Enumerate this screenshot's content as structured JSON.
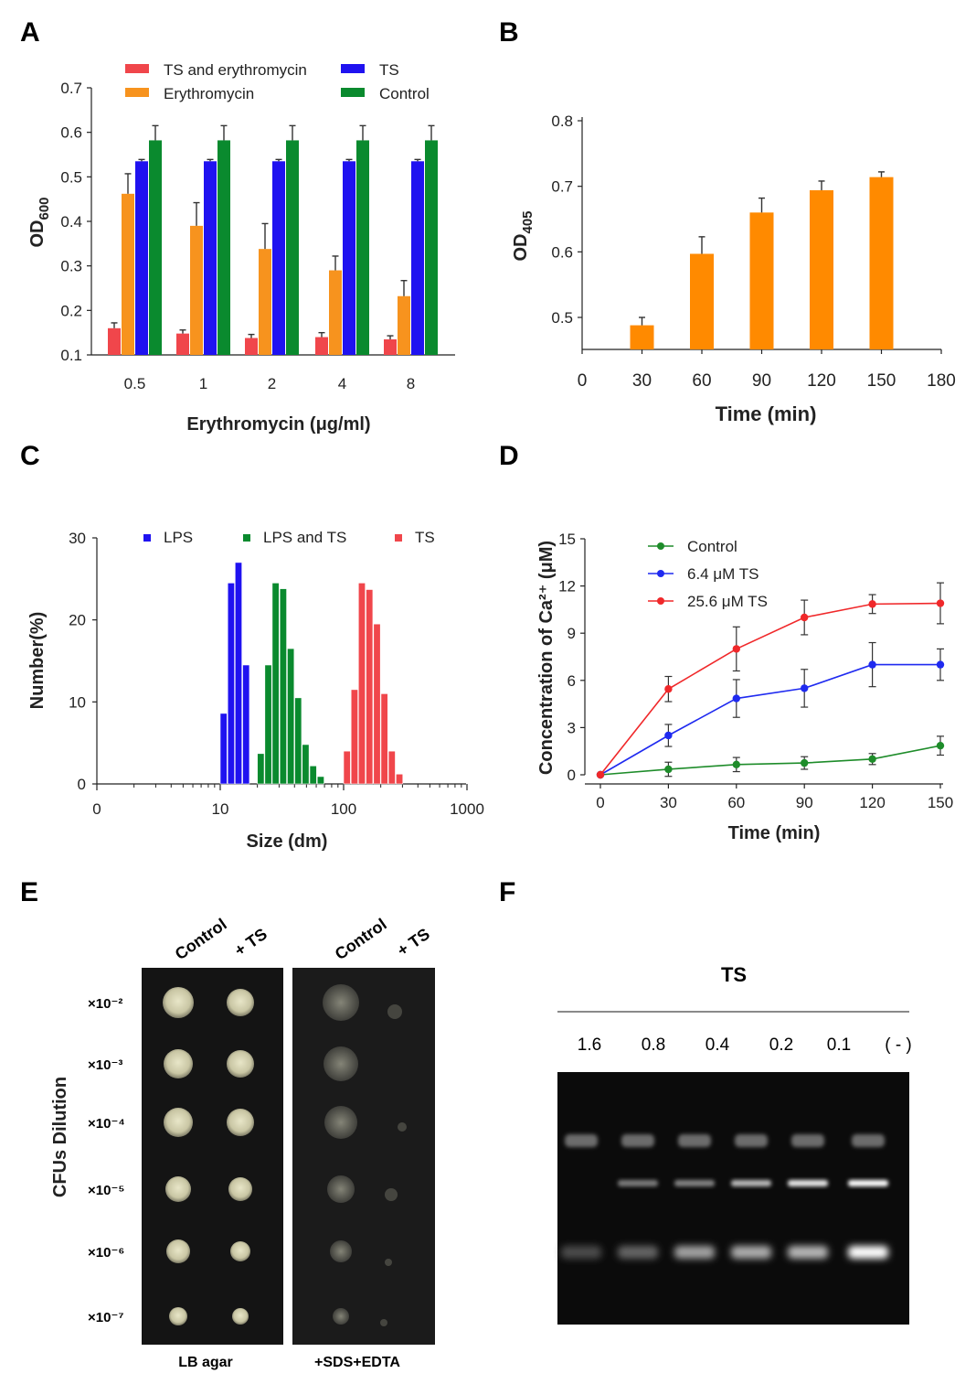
{
  "panels": {
    "a": "A",
    "b": "B",
    "c": "C",
    "d": "D",
    "e": "E",
    "f": "F"
  },
  "chart_data": [
    {
      "id": "A",
      "type": "bar",
      "ylabel": "OD",
      "ylabel_sub": "600",
      "xlabel": "Erythromycin (μg/ml)",
      "categories": [
        "0.5",
        "1",
        "2",
        "4",
        "8"
      ],
      "yticks": [
        "0.1",
        "0.2",
        "0.3",
        "0.4",
        "0.5",
        "0.6",
        "0.7"
      ],
      "ylim": [
        0.1,
        0.7
      ],
      "series": [
        {
          "name": "TS and erythromycin",
          "color": "#f0464b",
          "values": [
            0.16,
            0.148,
            0.138,
            0.14,
            0.135
          ],
          "err": [
            0.012,
            0.008,
            0.008,
            0.01,
            0.008
          ]
        },
        {
          "name": "Erythromycin",
          "color": "#f7931e",
          "values": [
            0.462,
            0.39,
            0.338,
            0.29,
            0.232
          ],
          "err": [
            0.045,
            0.052,
            0.057,
            0.032,
            0.035
          ]
        },
        {
          "name": "TS",
          "color": "#1f12f0",
          "values": [
            0.535,
            0.535,
            0.535,
            0.535,
            0.535
          ],
          "err": [
            0.004,
            0.004,
            0.004,
            0.004,
            0.004
          ]
        },
        {
          "name": "Control",
          "color": "#0a8a2e",
          "values": [
            0.582,
            0.582,
            0.582,
            0.582,
            0.582
          ],
          "err": [
            0.033,
            0.033,
            0.033,
            0.033,
            0.033
          ]
        }
      ]
    },
    {
      "id": "B",
      "type": "bar",
      "ylabel": "OD",
      "ylabel_sub": "405",
      "xlabel": "Time (min)",
      "x": [
        30,
        60,
        90,
        120,
        150
      ],
      "xticks": [
        "0",
        "30",
        "60",
        "90",
        "120",
        "150",
        "180"
      ],
      "yticks": [
        "0.5",
        "0.6",
        "0.7",
        "0.8"
      ],
      "ylim": [
        0.45,
        0.8
      ],
      "color": "#ff8a00",
      "values": [
        0.488,
        0.597,
        0.66,
        0.694,
        0.714
      ],
      "err": [
        0.012,
        0.026,
        0.022,
        0.014,
        0.008
      ]
    },
    {
      "id": "C",
      "type": "bar",
      "ylabel": "Number(%)",
      "xlabel": "Size (dm)",
      "xscale": "log",
      "xticks": [
        "0",
        "10",
        "100",
        "1000"
      ],
      "yticks": [
        "0",
        "10",
        "20",
        "30"
      ],
      "ylim": [
        0,
        30
      ],
      "series": [
        {
          "name": "LPS",
          "color": "#1f12f0",
          "x": [
            10,
            11.5,
            13.2,
            15.2
          ],
          "values": [
            8.6,
            24.5,
            27.0,
            14.5
          ]
        },
        {
          "name": "LPS and TS",
          "color": "#0a8a2e",
          "x": [
            20,
            23,
            26.4,
            30.4,
            35,
            40.2,
            46.2,
            53.2,
            61.2
          ],
          "values": [
            3.7,
            14.5,
            24.5,
            23.8,
            16.5,
            10.5,
            4.8,
            2.2,
            0.9
          ]
        },
        {
          "name": "TS",
          "color": "#f0464b",
          "x": [
            100,
            115,
            132,
            152,
            175,
            201,
            231,
            266
          ],
          "values": [
            4.0,
            11.5,
            24.5,
            23.7,
            19.5,
            11.0,
            4.0,
            1.2
          ]
        }
      ]
    },
    {
      "id": "D",
      "type": "line",
      "ylabel": "Concentration of Ca²⁺ (μM)",
      "xlabel": "Time (min)",
      "x": [
        0,
        30,
        60,
        90,
        120,
        150
      ],
      "xticks": [
        "0",
        "30",
        "60",
        "90",
        "120",
        "150"
      ],
      "yticks": [
        "0",
        "3",
        "6",
        "9",
        "12",
        "15"
      ],
      "ylim": [
        0,
        15
      ],
      "series": [
        {
          "name": "Control",
          "color": "#1e8c2a",
          "values": [
            0,
            0.35,
            0.65,
            0.75,
            1.0,
            1.85
          ],
          "err": [
            0,
            0.45,
            0.45,
            0.4,
            0.35,
            0.6
          ]
        },
        {
          "name": "6.4 μM TS",
          "color": "#1f2af0",
          "values": [
            0,
            2.5,
            4.85,
            5.5,
            7.0,
            7.0
          ],
          "err": [
            0,
            0.7,
            1.2,
            1.2,
            1.4,
            1.0
          ]
        },
        {
          "name": "25.6 μM TS",
          "color": "#f0282a",
          "values": [
            0,
            5.45,
            8.0,
            10.0,
            10.85,
            10.9
          ],
          "err": [
            0,
            0.8,
            1.4,
            1.1,
            0.6,
            1.3
          ]
        }
      ]
    }
  ],
  "panel_e": {
    "y_label": "CFUs  Dilution",
    "dilutions": [
      "×10⁻²",
      "×10⁻³",
      "×10⁻⁴",
      "×10⁻⁵",
      "×10⁻⁶",
      "×10⁻⁷"
    ],
    "col_labels": [
      "Control",
      "+ TS",
      "Control",
      "+ TS"
    ],
    "plate_labels": [
      "LB agar",
      "+SDS+EDTA"
    ]
  },
  "panel_f": {
    "title": "TS",
    "lanes": [
      "1.6",
      "0.8",
      "0.4",
      "0.2",
      "0.1",
      "( - )"
    ]
  }
}
